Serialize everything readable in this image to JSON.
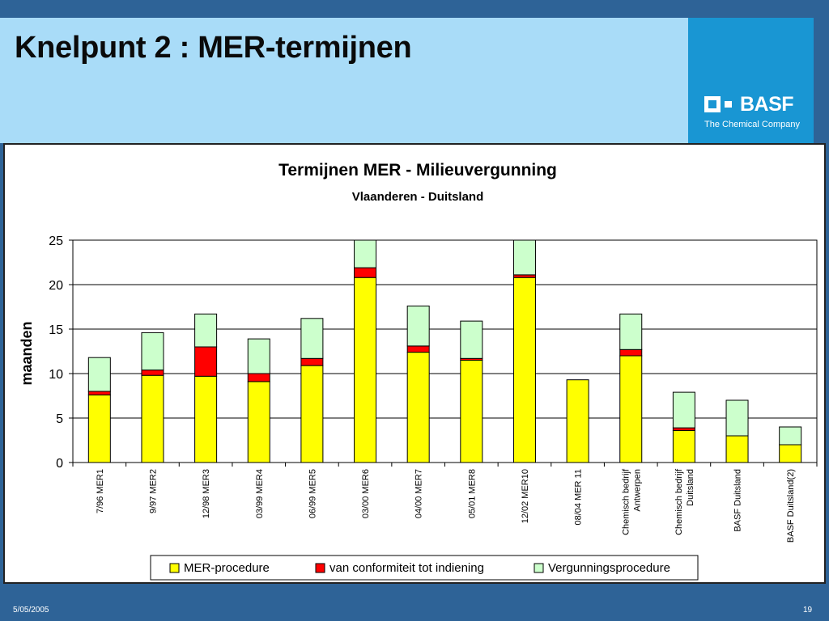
{
  "slide": {
    "title": "Knelpunt 2 : MER-termijnen",
    "footer_date": "5/05/2005",
    "page_number": "19"
  },
  "logo": {
    "name": "BASF",
    "tagline": "The Chemical Company"
  },
  "colors": {
    "header_band": "#a9dcf8",
    "logo_panel": "#1996d3",
    "frame": "#2e6397"
  },
  "chart_data": {
    "type": "bar",
    "stacked": true,
    "title": "Termijnen MER - Milieuvergunning",
    "subtitle": "Vlaanderen - Duitsland",
    "ylabel": "maanden",
    "xlabel": "",
    "ylim": [
      0,
      25
    ],
    "yticks": [
      0,
      5,
      10,
      15,
      20,
      25
    ],
    "grid": true,
    "legend_position": "bottom",
    "categories": [
      [
        "7/96 MER1"
      ],
      [
        "9/97 MER2"
      ],
      [
        "12/98 MER3"
      ],
      [
        "03/99 MER4"
      ],
      [
        "06/99 MER5"
      ],
      [
        "03/00 MER6"
      ],
      [
        "04/00 MER7"
      ],
      [
        "05/01 MER8"
      ],
      [
        "12/02 MER10"
      ],
      [
        "08/04 MER 11"
      ],
      [
        "Chemisch bedrijf",
        "Antwerpen"
      ],
      [
        "Chemisch bedrijf",
        "Duitsland"
      ],
      [
        "BASF Duitsland"
      ],
      [
        "BASF Duitsland(2)"
      ]
    ],
    "series": [
      {
        "name": "MER-procedure",
        "color": "#ffff00",
        "values": [
          7.6,
          9.8,
          9.7,
          9.1,
          10.9,
          20.8,
          12.4,
          11.5,
          20.8,
          9.3,
          12.0,
          3.6,
          3.0,
          2.0
        ]
      },
      {
        "name": "van conformiteit tot indiening",
        "color": "#ff0000",
        "values": [
          0.4,
          0.6,
          3.3,
          0.9,
          0.8,
          1.1,
          0.7,
          0.2,
          0.3,
          0,
          0.7,
          0.3,
          0,
          0
        ]
      },
      {
        "name": "Vergunningsprocedure",
        "color": "#ccffcc",
        "values": [
          3.8,
          4.2,
          3.7,
          3.9,
          4.5,
          3.1,
          4.5,
          4.2,
          3.9,
          0,
          4.0,
          4.0,
          4.0,
          2.0
        ]
      }
    ]
  }
}
